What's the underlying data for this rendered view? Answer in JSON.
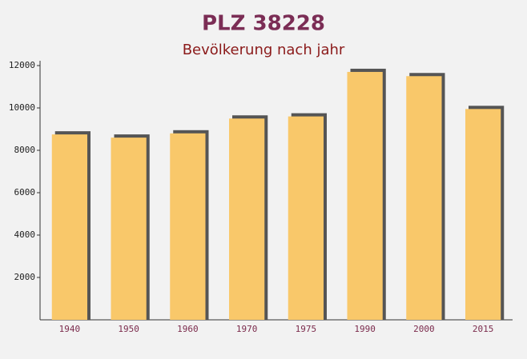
{
  "chart_data": {
    "type": "bar",
    "title": "PLZ 38228",
    "subtitle": "Bevölkerung nach jahr",
    "categories": [
      "1940",
      "1950",
      "1960",
      "1970",
      "1975",
      "1990",
      "2000",
      "2015"
    ],
    "values": [
      8750,
      8600,
      8800,
      9500,
      9600,
      11700,
      11500,
      9950
    ],
    "color": "#f9c86a",
    "ylim": [
      0,
      12000
    ],
    "yticks": [
      2000,
      4000,
      6000,
      8000,
      10000,
      12000
    ],
    "grid": false
  }
}
